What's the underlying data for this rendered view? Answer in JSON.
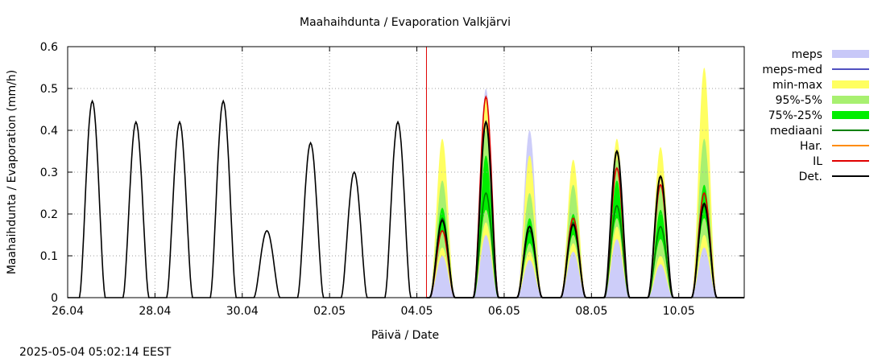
{
  "chart_data": {
    "type": "area",
    "title": "Maahaihdunta / Evaporation  Valkjärvi",
    "xlabel": "Päivä / Date",
    "ylabel": "Maahaihdunta / Evaporation (mm/h)",
    "x_unit": "days since 26.04 00:00",
    "xlim": [
      0,
      15.5
    ],
    "ylim": [
      0,
      0.6
    ],
    "yticks": [
      "0",
      "0.1",
      "0.2",
      "0.3",
      "0.4",
      "0.5",
      "0.6"
    ],
    "xticks": [
      {
        "x": 0,
        "label": "26.04"
      },
      {
        "x": 2,
        "label": "28.04"
      },
      {
        "x": 4,
        "label": "30.04"
      },
      {
        "x": 6,
        "label": "02.05"
      },
      {
        "x": 8,
        "label": "04.05"
      },
      {
        "x": 10,
        "label": "06.05"
      },
      {
        "x": 12,
        "label": "08.05"
      },
      {
        "x": 14,
        "label": "10.05"
      }
    ],
    "grid": true,
    "forecast_start": 8.22,
    "legend": [
      {
        "label": "meps",
        "color": "#c8c8f8",
        "kind": "box"
      },
      {
        "label": "meps-med",
        "color": "#5050c0",
        "kind": "line"
      },
      {
        "label": "min-max",
        "color": "#ffff60",
        "kind": "box"
      },
      {
        "label": "95%-5%",
        "color": "#a8f070",
        "kind": "box"
      },
      {
        "label": "75%-25%",
        "color": "#00ee00",
        "kind": "box"
      },
      {
        "label": "mediaani",
        "color": "#008000",
        "kind": "line"
      },
      {
        "label": "Har.",
        "color": "#ff8c00",
        "kind": "line"
      },
      {
        "label": "IL",
        "color": "#e00000",
        "kind": "line"
      },
      {
        "label": "Det.",
        "color": "#000000",
        "kind": "line"
      }
    ],
    "observed_daily_peaks": [
      {
        "date": "26.04",
        "peak": 0.47
      },
      {
        "date": "27.04",
        "peak": 0.42
      },
      {
        "date": "28.04",
        "peak": 0.42
      },
      {
        "date": "29.04",
        "peak": 0.47
      },
      {
        "date": "30.04",
        "peak": 0.16
      },
      {
        "date": "01.05",
        "peak": 0.37
      },
      {
        "date": "02.05",
        "peak": 0.3
      },
      {
        "date": "03.05",
        "peak": 0.42
      }
    ],
    "forecast_days": [
      {
        "date": "04.05",
        "det": 0.185,
        "il": 0.16,
        "median": 0.19,
        "q25": 0.16,
        "q75": 0.215,
        "p5": 0.12,
        "p95": 0.28,
        "min": 0.1,
        "max": 0.38,
        "meps": 0.18
      },
      {
        "date": "05.05",
        "det": 0.42,
        "il": 0.48,
        "median": 0.25,
        "q25": 0.21,
        "q75": 0.34,
        "p5": 0.18,
        "p95": 0.4,
        "min": 0.15,
        "max": 0.48,
        "meps": 0.5
      },
      {
        "date": "06.05",
        "det": 0.17,
        "il": 0.17,
        "median": 0.16,
        "q25": 0.13,
        "q75": 0.19,
        "p5": 0.11,
        "p95": 0.25,
        "min": 0.09,
        "max": 0.34,
        "meps": 0.4
      },
      {
        "date": "07.05",
        "det": 0.175,
        "il": 0.19,
        "median": 0.18,
        "q25": 0.15,
        "q75": 0.2,
        "p5": 0.13,
        "p95": 0.27,
        "min": 0.11,
        "max": 0.33,
        "meps": 0.17
      },
      {
        "date": "08.05",
        "det": 0.35,
        "il": 0.31,
        "median": 0.22,
        "q25": 0.19,
        "q75": 0.28,
        "p5": 0.17,
        "p95": 0.33,
        "min": 0.14,
        "max": 0.38,
        "meps": 0.35
      },
      {
        "date": "09.05",
        "det": 0.29,
        "il": 0.27,
        "median": 0.17,
        "q25": 0.14,
        "q75": 0.21,
        "p5": 0.1,
        "p95": 0.27,
        "min": 0.08,
        "max": 0.36,
        "meps": 0.29
      },
      {
        "date": "10.05",
        "det": 0.225,
        "il": 0.25,
        "median": 0.22,
        "q25": 0.19,
        "q75": 0.27,
        "p5": 0.15,
        "p95": 0.38,
        "min": 0.12,
        "max": 0.55,
        "meps": 0.22
      }
    ]
  },
  "footer": {
    "timestamp": "2025-05-04 05:02:14 EEST"
  }
}
